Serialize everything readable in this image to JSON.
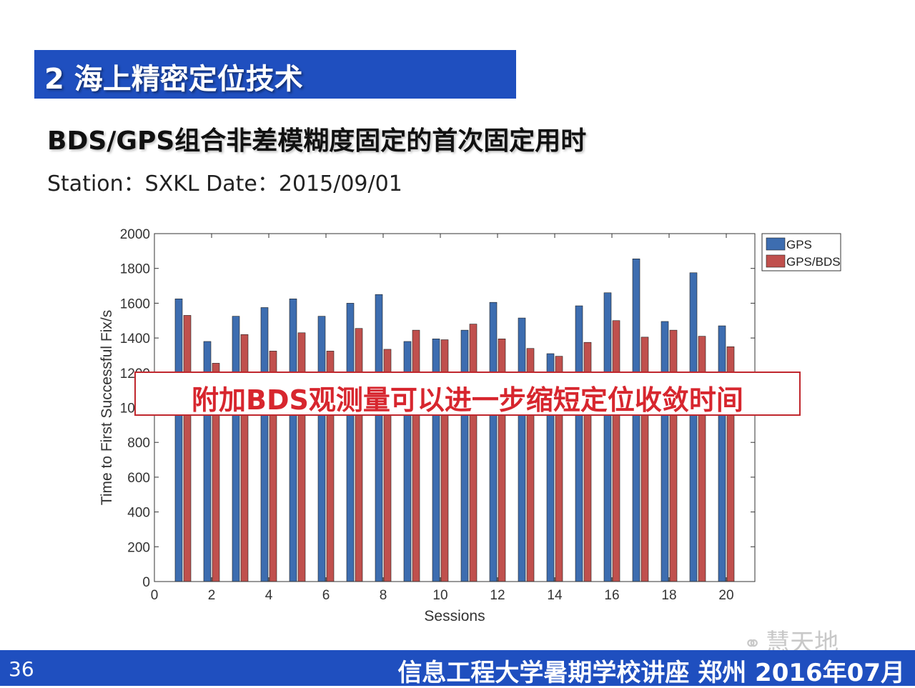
{
  "slide": {
    "title": "2 海上精密定位技术",
    "subtitle": "BDS/GPS组合非差模糊度固定的首次固定用时",
    "station_line": "Station：SXKL  Date：2015/09/01",
    "callout": "附加BDS观测量可以进一步缩短定位收敛时间",
    "watermark": "慧天地",
    "page_number": "36",
    "footer": "信息工程大学暑期学校讲座  郑州  2016年07月"
  },
  "colors": {
    "header_blue": "#1f4fbf",
    "gps": "#3d6db0",
    "gps_bds": "#c0504d",
    "callout_red": "#d7262e"
  },
  "chart_data": {
    "type": "bar",
    "xlabel": "Sessions",
    "ylabel": "Time to First Successful Fix/s",
    "xlim": [
      0,
      21
    ],
    "ylim": [
      0,
      2000
    ],
    "x_ticks": [
      0,
      2,
      4,
      6,
      8,
      10,
      12,
      14,
      16,
      18,
      20
    ],
    "y_ticks": [
      0,
      200,
      400,
      600,
      800,
      1000,
      1200,
      1400,
      1600,
      1800,
      2000
    ],
    "grid": false,
    "legend_position": "top-right",
    "categories": [
      1,
      2,
      3,
      4,
      5,
      6,
      7,
      8,
      9,
      10,
      11,
      12,
      13,
      14,
      15,
      16,
      17,
      18,
      19,
      20
    ],
    "series": [
      {
        "name": "GPS",
        "values": [
          1625,
          1380,
          1525,
          1575,
          1625,
          1525,
          1600,
          1650,
          1380,
          1395,
          1445,
          1605,
          1515,
          1310,
          1585,
          1660,
          1855,
          1495,
          1775,
          1470
        ]
      },
      {
        "name": "GPS/BDS",
        "values": [
          1530,
          1255,
          1420,
          1325,
          1430,
          1325,
          1455,
          1335,
          1445,
          1390,
          1480,
          1395,
          1340,
          1295,
          1375,
          1500,
          1405,
          1445,
          1410,
          1350
        ]
      }
    ]
  }
}
